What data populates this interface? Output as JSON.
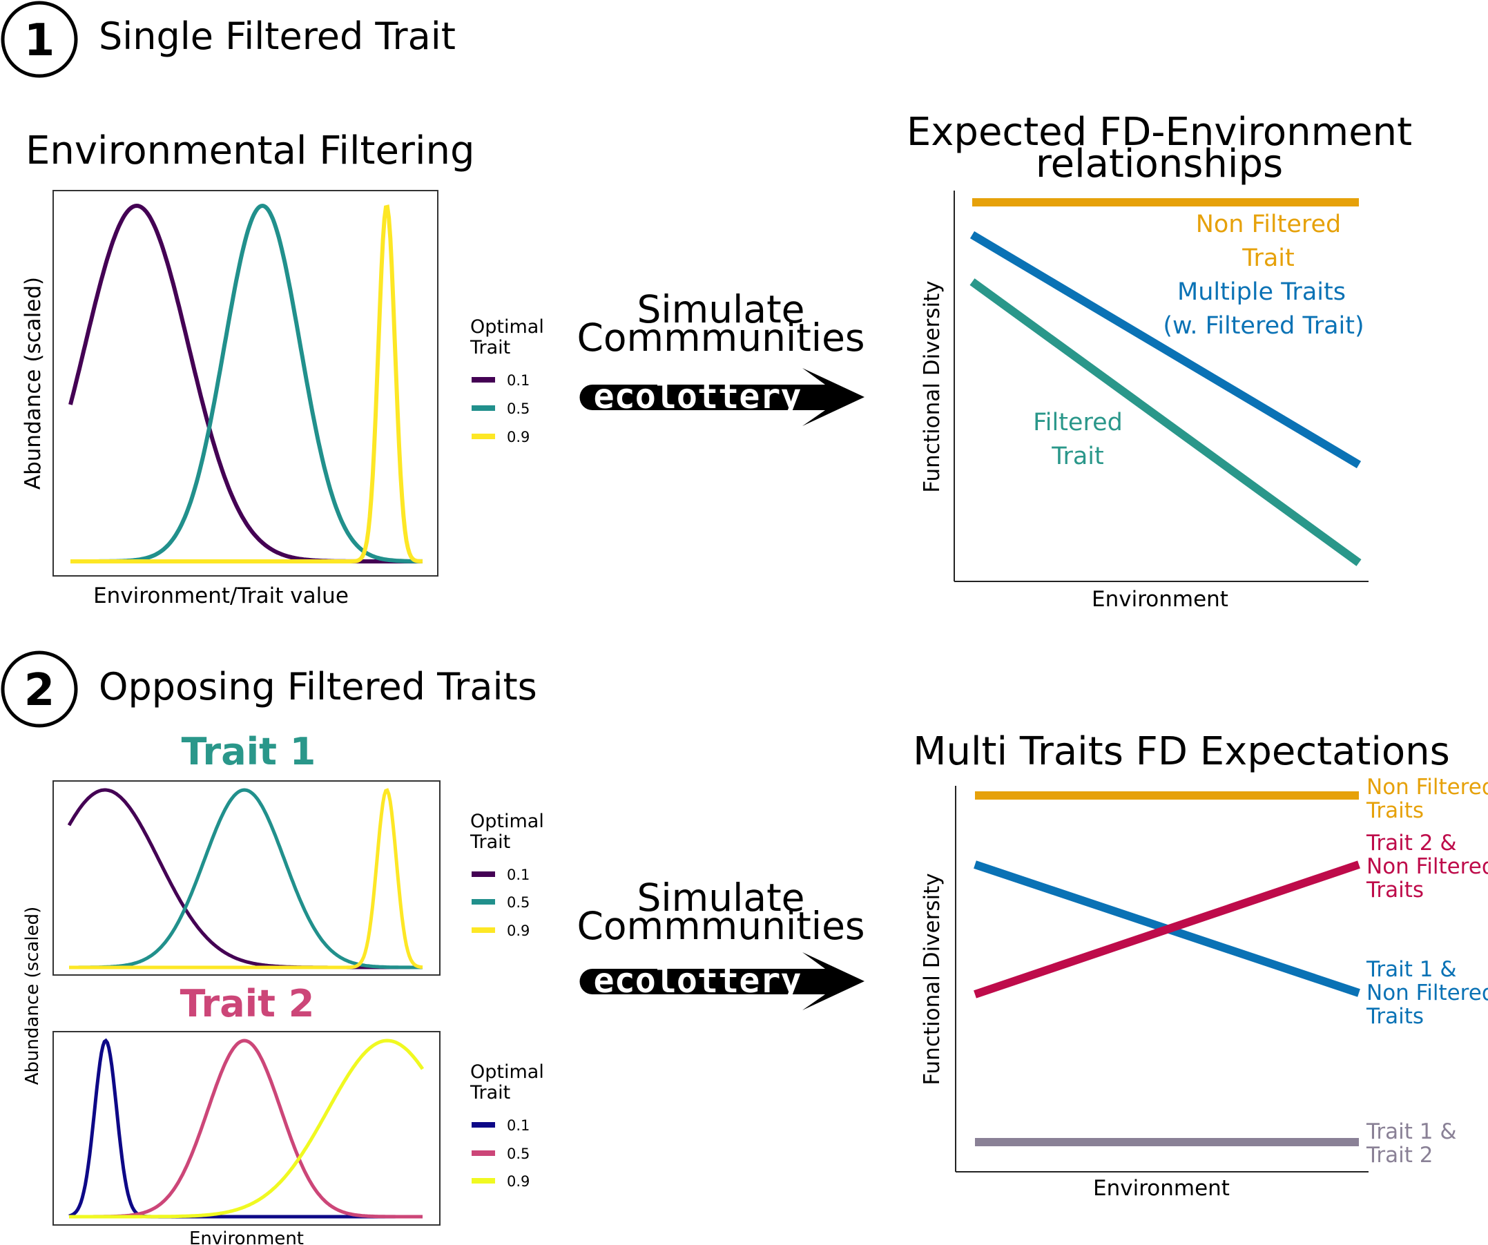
{
  "section1": {
    "number": "1",
    "title": "Single Filtered Trait",
    "left_panel": {
      "title": "Environmental Filtering",
      "ylabel": "Abundance (scaled)",
      "xlabel": "Environment/Trait value",
      "legend_title_line1": "Optimal",
      "legend_title_line2": "Trait",
      "legend_entries": [
        {
          "label": "0.1",
          "color": "#440154"
        },
        {
          "label": "0.5",
          "color": "#21908C"
        },
        {
          "label": "0.9",
          "color": "#FDE725"
        }
      ]
    },
    "arrow": {
      "label_line1": "Simulate",
      "label_line2": "Commmunities",
      "tool": "ecolottery"
    },
    "right_panel": {
      "title_line1": "Expected FD-Environment",
      "title_line2": "relationships",
      "ylabel": "Functional Diversity",
      "xlabel": "Environment",
      "lines": [
        {
          "label_line1": "Non Filtered",
          "label_line2": "Trait",
          "color": "#E6A10A",
          "trend": "flat"
        },
        {
          "label_line1": "Multiple Traits",
          "label_line2": "(w. Filtered Trait)",
          "color": "#0A72B5",
          "trend": "decreasing"
        },
        {
          "label_line1": "Filtered",
          "label_line2": "Trait",
          "color": "#2A978A",
          "trend": "decreasing"
        }
      ]
    }
  },
  "section2": {
    "number": "2",
    "title": "Opposing Filtered Traits",
    "trait1_panel": {
      "title": "Trait 1",
      "title_color": "#2A978A",
      "legend_title_line1": "Optimal",
      "legend_title_line2": "Trait",
      "legend_entries": [
        {
          "label": "0.1",
          "color": "#440154"
        },
        {
          "label": "0.5",
          "color": "#21908C"
        },
        {
          "label": "0.9",
          "color": "#FDE725"
        }
      ]
    },
    "trait2_panel": {
      "title": "Trait 2",
      "title_color": "#CC4678",
      "legend_title_line1": "Optimal",
      "legend_title_line2": "Trait",
      "legend_entries": [
        {
          "label": "0.1",
          "color": "#0D0887"
        },
        {
          "label": "0.5",
          "color": "#CC4678"
        },
        {
          "label": "0.9",
          "color": "#F0F921"
        }
      ]
    },
    "shared_ylabel": "Abundance (scaled)",
    "shared_xlabel": "Environment",
    "arrow": {
      "label_line1": "Simulate",
      "label_line2": "Commmunities",
      "tool": "ecolottery"
    },
    "right_panel": {
      "title": "Multi Traits FD Expectations",
      "ylabel": "Functional Diversity",
      "xlabel": "Environment",
      "lines": [
        {
          "label_line1": "Non Filtered",
          "label_line2": "Traits",
          "label_line3": "",
          "color": "#E6A10A",
          "trend": "flat"
        },
        {
          "label_line1": "Trait 2 &",
          "label_line2": "Non Filtered",
          "label_line3": "Traits",
          "color": "#BE0B4A",
          "trend": "increasing"
        },
        {
          "label_line1": "Trait 1 &",
          "label_line2": "Non Filtered",
          "label_line3": "Traits",
          "color": "#0A72B5",
          "trend": "decreasing"
        },
        {
          "label_line1": "Trait 1 &",
          "label_line2": "Trait 2",
          "label_line3": "",
          "color": "#8A8196",
          "trend": "flat"
        }
      ]
    }
  }
}
